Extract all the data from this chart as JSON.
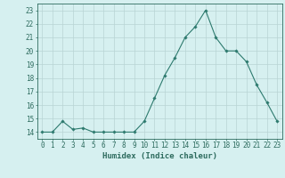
{
  "x": [
    0,
    1,
    2,
    3,
    4,
    5,
    6,
    7,
    8,
    9,
    10,
    11,
    12,
    13,
    14,
    15,
    16,
    17,
    18,
    19,
    20,
    21,
    22,
    23
  ],
  "y": [
    14,
    14,
    14.8,
    14.2,
    14.3,
    14,
    14,
    14,
    14,
    14,
    14.8,
    16.5,
    18.2,
    19.5,
    21,
    21.8,
    23,
    21,
    20,
    20,
    19.2,
    17.5,
    16.2,
    14.8
  ],
  "line_color": "#2d7a6e",
  "marker": "D",
  "marker_size": 1.8,
  "bg_color": "#d6f0f0",
  "grid_color": "#b8d4d4",
  "xlabel": "Humidex (Indice chaleur)",
  "xlim": [
    -0.5,
    23.5
  ],
  "ylim": [
    13.5,
    23.5
  ],
  "yticks": [
    14,
    15,
    16,
    17,
    18,
    19,
    20,
    21,
    22,
    23
  ],
  "xticks": [
    0,
    1,
    2,
    3,
    4,
    5,
    6,
    7,
    8,
    9,
    10,
    11,
    12,
    13,
    14,
    15,
    16,
    17,
    18,
    19,
    20,
    21,
    22,
    23
  ],
  "tick_color": "#2d6b5e",
  "axis_color": "#2d6b5e",
  "label_fontsize": 6.5,
  "tick_fontsize": 5.5
}
